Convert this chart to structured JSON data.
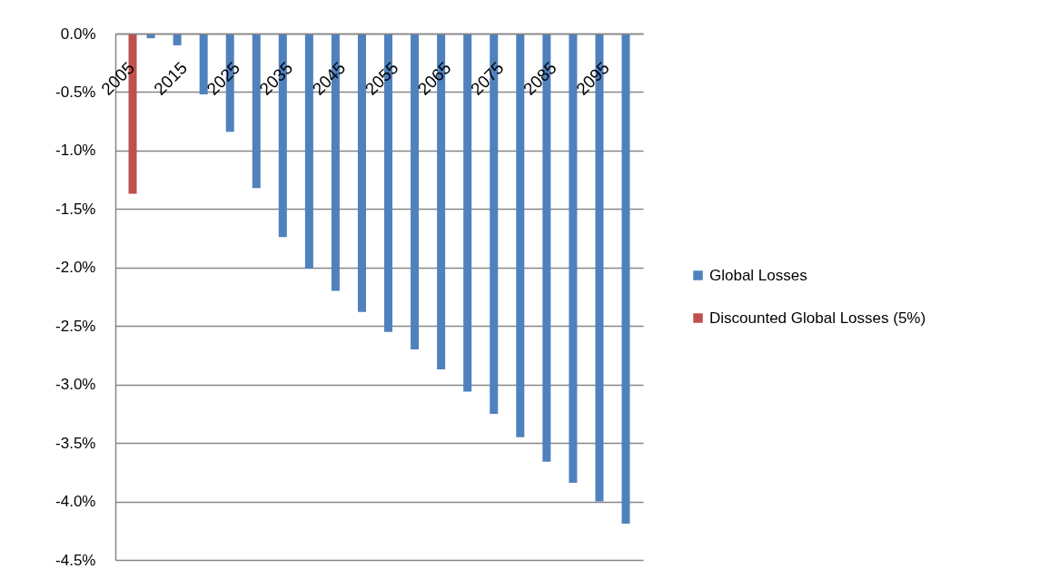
{
  "chart_data": {
    "type": "bar",
    "categories": [
      "2005",
      null,
      "2015",
      null,
      "2025",
      null,
      "2035",
      null,
      "2045",
      null,
      "2055",
      null,
      "2065",
      null,
      "2075",
      null,
      "2085",
      null,
      "2095",
      null
    ],
    "series": [
      {
        "name": "Global Losses",
        "color": "#4f81bd",
        "values": [
          null,
          -0.04,
          -0.1,
          -0.52,
          -0.84,
          -1.32,
          -1.74,
          -2.01,
          -2.2,
          -2.38,
          -2.55,
          -2.7,
          -2.87,
          -3.06,
          -3.25,
          -3.45,
          -3.66,
          -3.84,
          -4.0,
          -4.19
        ]
      },
      {
        "name": "Discounted Global Losses (5%)",
        "color": "#c0504d",
        "values": [
          -1.37,
          null,
          null,
          null,
          null,
          null,
          null,
          null,
          null,
          null,
          null,
          null,
          null,
          null,
          null,
          null,
          null,
          null,
          null,
          null
        ]
      }
    ],
    "ylim": [
      -4.5,
      0
    ],
    "yticks": [
      {
        "value": 0,
        "label": "0.0%"
      },
      {
        "value": -0.5,
        "label": "-0.5%"
      },
      {
        "value": -1,
        "label": "-1.0%"
      },
      {
        "value": -1.5,
        "label": "-1.5%"
      },
      {
        "value": -2,
        "label": "-2.0%"
      },
      {
        "value": -2.5,
        "label": "-2.5%"
      },
      {
        "value": -3,
        "label": "-3.0%"
      },
      {
        "value": -3.5,
        "label": "-3.5%"
      },
      {
        "value": -4,
        "label": "-4.0%"
      },
      {
        "value": -4.5,
        "label": "-4.5%"
      }
    ],
    "grid": "y",
    "legend": "right"
  }
}
